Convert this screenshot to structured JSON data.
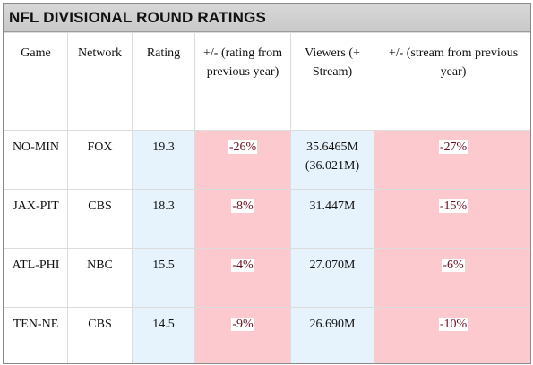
{
  "title": "NFL DIVISIONAL ROUND RATINGS",
  "columns": [
    "Game",
    "Network",
    "Rating",
    "+/- (rating from previous year)",
    "Viewers (+ Stream)",
    "+/- (stream from previous year)"
  ],
  "rows": [
    {
      "game": "NO-MIN",
      "network": "FOX",
      "rating": "19.3",
      "rating_change": "-26%",
      "viewers": "35.6465M",
      "viewers_stream": "(36.021M)",
      "stream_change": "-27%"
    },
    {
      "game": "JAX-PIT",
      "network": "CBS",
      "rating": "18.3",
      "rating_change": "-8%",
      "viewers": "31.447M",
      "viewers_stream": "",
      "stream_change": "-15%"
    },
    {
      "game": "ATL-PHI",
      "network": "NBC",
      "rating": "15.5",
      "rating_change": "-4%",
      "viewers": "27.070M",
      "viewers_stream": "",
      "stream_change": "-6%"
    },
    {
      "game": "TEN-NE",
      "network": "CBS",
      "rating": "14.5",
      "rating_change": "-9%",
      "viewers": "26.690M",
      "viewers_stream": "",
      "stream_change": "-10%"
    }
  ],
  "colors": {
    "title_bar": "#cccccc",
    "rating_column": "#e6f3fc",
    "viewers_column": "#e6f3fc",
    "change_columns": "#fcc9cf",
    "change_text": "#7a1020"
  }
}
